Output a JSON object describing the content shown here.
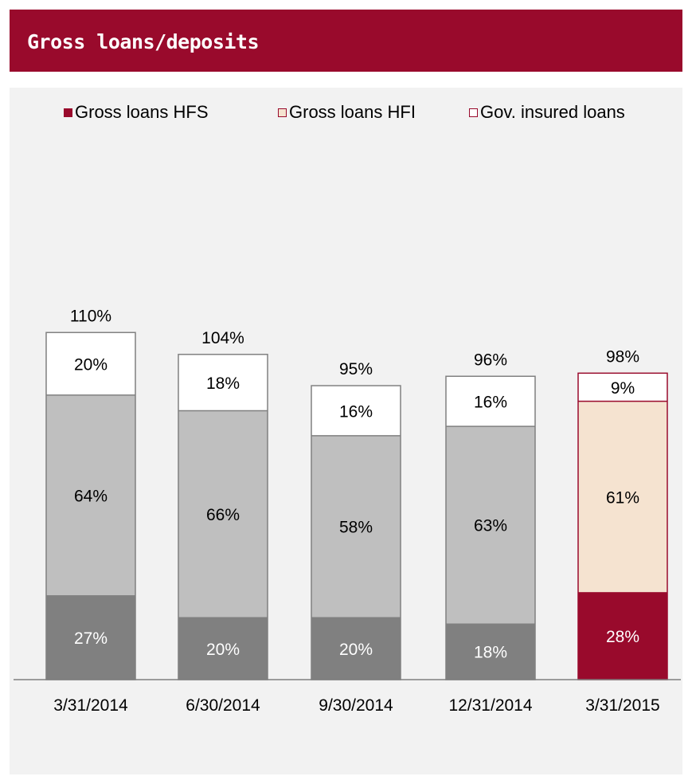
{
  "header": {
    "title": "Gross loans/deposits"
  },
  "colors": {
    "header_bg": "#990a2c",
    "panel_bg": "#f2f2f2",
    "hfs_gray": "#808080",
    "hfi_gray": "#bfbfbf",
    "insured_white": "#ffffff",
    "highlight_hfs": "#990a2c",
    "highlight_hfi": "#f5e3d0",
    "highlight_insured": "#ffffff",
    "outline_gray": "#808080"
  },
  "legend": [
    {
      "label": "Gross loans HFS",
      "swatch": "filled"
    },
    {
      "label": "Gross loans HFI",
      "swatch": "outline"
    },
    {
      "label": "Gov. insured loans",
      "swatch": "outline"
    }
  ],
  "chart_data": {
    "type": "bar",
    "stacked": true,
    "categories": [
      "3/31/2014",
      "6/30/2014",
      "9/30/2014",
      "12/31/2014",
      "3/31/2015"
    ],
    "series": [
      {
        "name": "Gross loans HFS",
        "values": [
          27,
          20,
          20,
          18,
          28
        ],
        "labels": [
          "27%",
          "20%",
          "20%",
          "18%",
          "28%"
        ]
      },
      {
        "name": "Gross loans HFI",
        "values": [
          64,
          66,
          58,
          63,
          61
        ],
        "labels": [
          "64%",
          "66%",
          "58%",
          "63%",
          "61%"
        ]
      },
      {
        "name": "Gov. insured loans",
        "values": [
          20,
          18,
          16,
          16,
          9
        ],
        "labels": [
          "20%",
          "18%",
          "16%",
          "16%",
          "9%"
        ]
      }
    ],
    "totals": [
      110,
      104,
      95,
      96,
      98
    ],
    "total_labels": [
      "110%",
      "104%",
      "95%",
      "96%",
      "98%"
    ],
    "highlighted_category": "3/31/2015",
    "legend_position": "top",
    "ylim": [
      0,
      140
    ],
    "grid": false
  }
}
